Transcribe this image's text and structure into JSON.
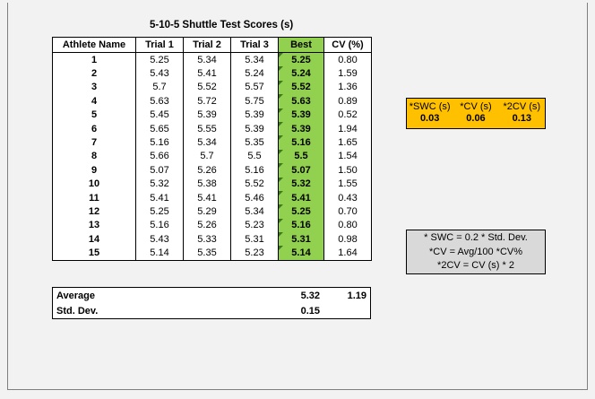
{
  "title": "5-10-5 Shuttle Test Scores (s)",
  "columns": [
    "Athlete Name",
    "Trial 1",
    "Trial 2",
    "Trial 3",
    "Best",
    "CV (%)"
  ],
  "rows": [
    [
      "1",
      "5.25",
      "5.34",
      "5.34",
      "5.25",
      "0.80"
    ],
    [
      "2",
      "5.43",
      "5.41",
      "5.24",
      "5.24",
      "1.59"
    ],
    [
      "3",
      "5.7",
      "5.52",
      "5.57",
      "5.52",
      "1.36"
    ],
    [
      "4",
      "5.63",
      "5.72",
      "5.75",
      "5.63",
      "0.89"
    ],
    [
      "5",
      "5.45",
      "5.39",
      "5.39",
      "5.39",
      "0.52"
    ],
    [
      "6",
      "5.65",
      "5.55",
      "5.39",
      "5.39",
      "1.94"
    ],
    [
      "7",
      "5.16",
      "5.34",
      "5.35",
      "5.16",
      "1.65"
    ],
    [
      "8",
      "5.66",
      "5.7",
      "5.5",
      "5.5",
      "1.54"
    ],
    [
      "9",
      "5.07",
      "5.26",
      "5.16",
      "5.07",
      "1.50"
    ],
    [
      "10",
      "5.32",
      "5.38",
      "5.52",
      "5.32",
      "1.55"
    ],
    [
      "11",
      "5.41",
      "5.41",
      "5.46",
      "5.41",
      "0.43"
    ],
    [
      "12",
      "5.25",
      "5.29",
      "5.34",
      "5.25",
      "0.70"
    ],
    [
      "13",
      "5.16",
      "5.26",
      "5.23",
      "5.16",
      "0.80"
    ],
    [
      "14",
      "5.43",
      "5.33",
      "5.31",
      "5.31",
      "0.98"
    ],
    [
      "15",
      "5.14",
      "5.35",
      "5.23",
      "5.14",
      "1.64"
    ]
  ],
  "summary": {
    "average_label": "Average",
    "average_best": "5.32",
    "average_cv": "1.19",
    "sd_label": "Std. Dev.",
    "sd_best": "0.15"
  },
  "swc_box": {
    "headers": [
      "*SWC (s)",
      "*CV (s)",
      "*2CV (s)"
    ],
    "values": [
      "0.03",
      "0.06",
      "0.13"
    ]
  },
  "notes": [
    "* SWC = 0.2 * Std. Dev.",
    "*CV = Avg/100 *CV%",
    "*2CV = CV (s) * 2"
  ],
  "colors": {
    "best_column": "#92d050",
    "swc_box": "#ffc000",
    "notes_box": "#d9d9d9"
  }
}
